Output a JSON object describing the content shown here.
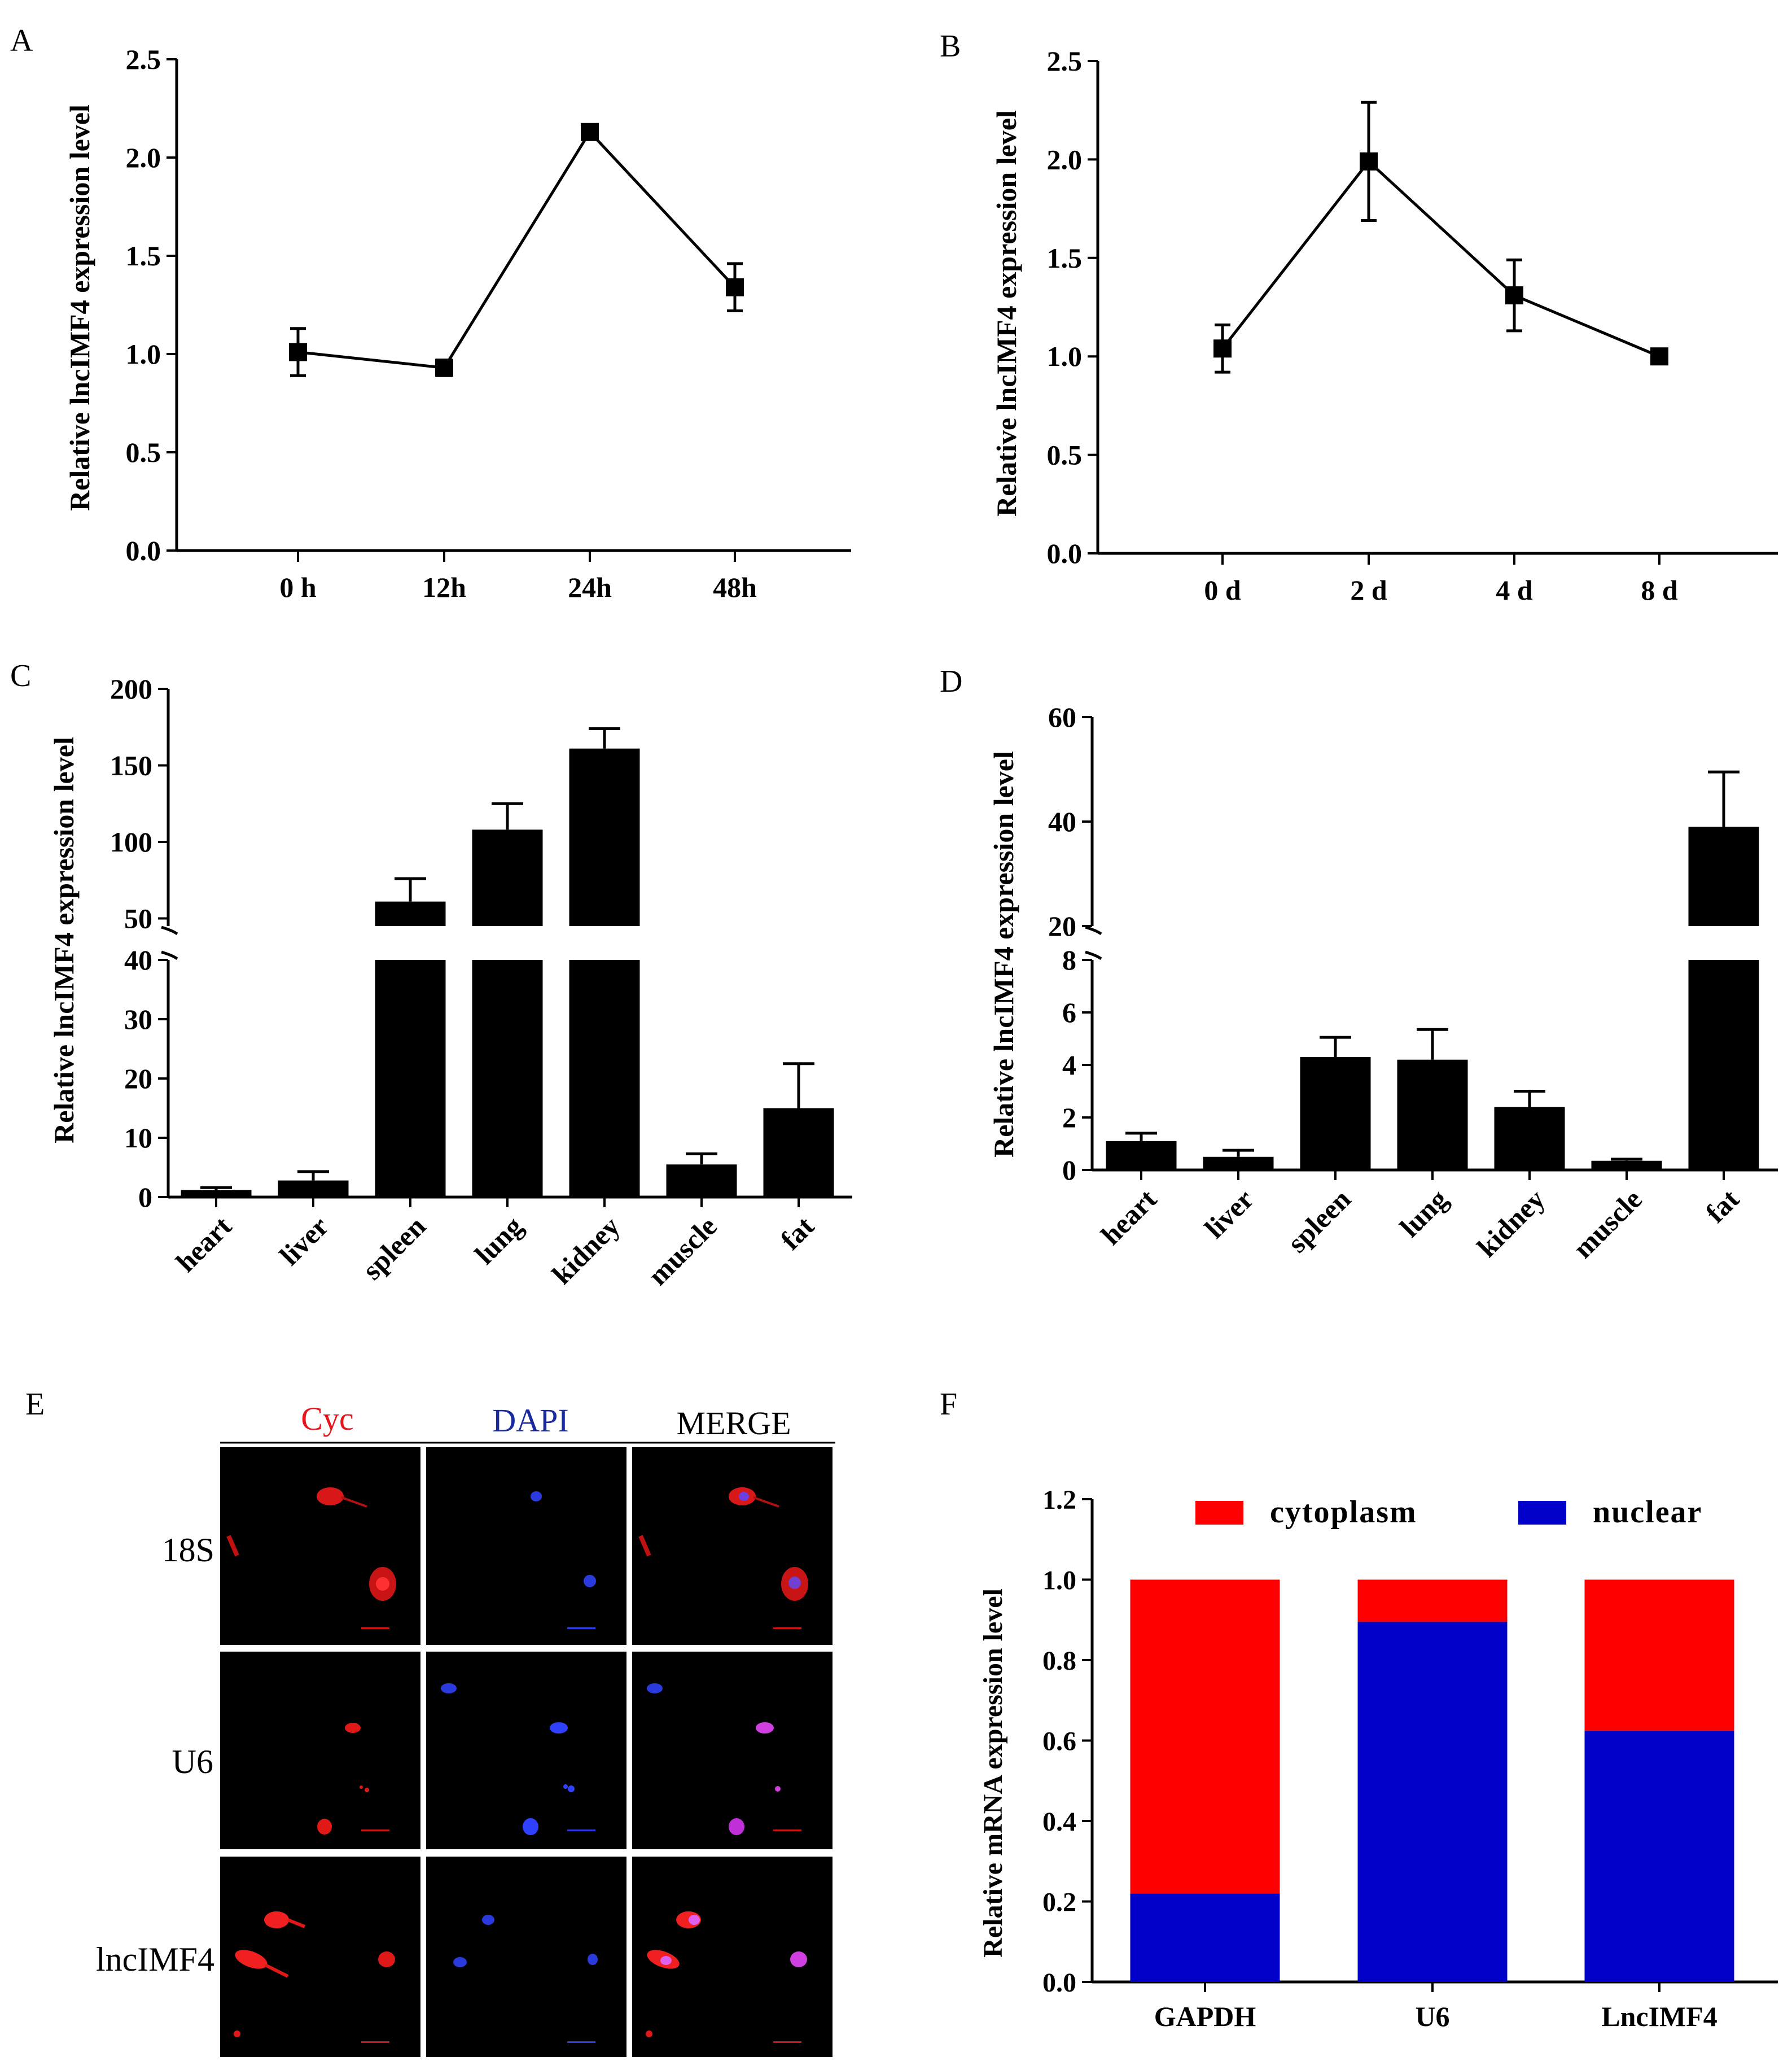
{
  "panels": {
    "A": {
      "letter": "A",
      "ylabel": "Relative lncIMF4 expression level"
    },
    "B": {
      "letter": "B",
      "ylabel": "Relative lncIMF4 expression level"
    },
    "C": {
      "letter": "C",
      "ylabel": "Relative lncIMF4 expression level"
    },
    "D": {
      "letter": "D",
      "ylabel": "Relative lncIMF4 expression level"
    },
    "E": {
      "letter": "E",
      "columns": [
        "Cyc",
        "DAPI",
        "MERGE"
      ],
      "rows": [
        "18S",
        "U6",
        "lncIMF4"
      ]
    },
    "F": {
      "letter": "F",
      "ylabel": "Relative mRNA expression level"
    }
  },
  "colors": {
    "cytoplasm": "#ff0000",
    "nuclear": "#0000c8",
    "cyc": "#e8141a",
    "dapi": "#1a2aa0",
    "merge": "#222222"
  },
  "chart_data": [
    {
      "id": "A",
      "type": "line",
      "categories": [
        "0 h",
        "12h",
        "24h",
        "48h"
      ],
      "values": [
        1.01,
        0.93,
        2.13,
        1.34
      ],
      "errors": [
        0.12,
        0.04,
        0.02,
        0.12
      ],
      "yticks": [
        "0.0",
        "0.5",
        "1.0",
        "1.5",
        "2.0",
        "2.5"
      ],
      "ylim": [
        0,
        2.5
      ],
      "ylabel": "Relative lncIMF4 expression level"
    },
    {
      "id": "B",
      "type": "line",
      "categories": [
        "0 d",
        "2 d",
        "4 d",
        "8 d"
      ],
      "values": [
        1.04,
        1.99,
        1.31,
        1.0
      ],
      "errors": [
        0.12,
        0.3,
        0.18,
        0.02
      ],
      "yticks": [
        "0.0",
        "0.5",
        "1.0",
        "1.5",
        "2.0",
        "2.5"
      ],
      "ylim": [
        0,
        2.5
      ],
      "ylabel": "Relative lncIMF4 expression level"
    },
    {
      "id": "C",
      "type": "bar",
      "broken_axis": true,
      "categories": [
        "heart",
        "liver",
        "spleen",
        "lung",
        "kidney",
        "muscle",
        "fat"
      ],
      "values": [
        1.2,
        2.8,
        61,
        108,
        161,
        5.5,
        15
      ],
      "errors": [
        0.4,
        1.5,
        15,
        17,
        13,
        1.8,
        7.5
      ],
      "lower_yticks": [
        "0",
        "10",
        "20",
        "30",
        "40"
      ],
      "upper_yticks": [
        "50",
        "100",
        "150",
        "200"
      ],
      "lower_range": [
        0,
        40
      ],
      "upper_range": [
        45,
        200
      ],
      "ylabel": "Relative lncIMF4 expression level"
    },
    {
      "id": "D",
      "type": "bar",
      "broken_axis": true,
      "categories": [
        "heart",
        "liver",
        "spleen",
        "lung",
        "kidney",
        "muscle",
        "fat"
      ],
      "values": [
        1.1,
        0.5,
        4.3,
        4.2,
        2.4,
        0.35,
        39
      ],
      "errors": [
        0.3,
        0.25,
        0.75,
        1.15,
        0.6,
        0.06,
        10.5
      ],
      "lower_yticks": [
        "0",
        "2",
        "4",
        "6",
        "8"
      ],
      "upper_yticks": [
        "20",
        "40",
        "60"
      ],
      "lower_range": [
        0,
        8
      ],
      "upper_range": [
        20,
        60
      ],
      "ylabel": "Relative lncIMF4 expression level"
    },
    {
      "id": "F",
      "type": "bar",
      "stacked": true,
      "categories": [
        "GAPDH",
        "U6",
        "LncIMF4"
      ],
      "series": [
        {
          "name": "nuclear",
          "values": [
            0.22,
            0.895,
            0.625
          ]
        },
        {
          "name": "cytoplasm",
          "values": [
            0.78,
            0.105,
            0.375
          ]
        }
      ],
      "yticks": [
        "0.0",
        "0.2",
        "0.4",
        "0.6",
        "0.8",
        "1.0",
        "1.2"
      ],
      "ylim": [
        0,
        1.2
      ],
      "ylabel": "Relative mRNA expression level",
      "legend": [
        "cytoplasm",
        "nuclear"
      ]
    }
  ]
}
